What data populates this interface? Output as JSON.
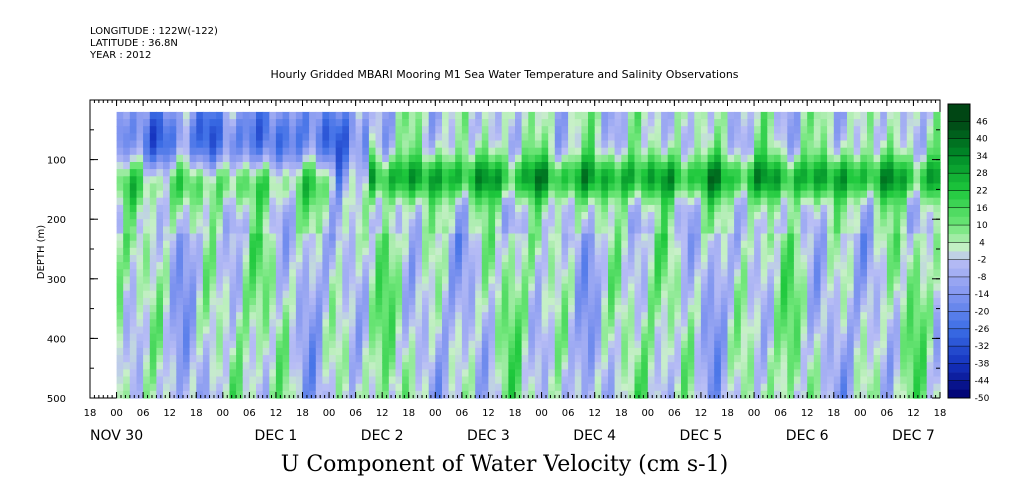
{
  "header": {
    "longitude": "LONGITUDE : 122W(-122)",
    "latitude": "LATITUDE : 36.8N",
    "year": "YEAR : 2012"
  },
  "chart_data": {
    "type": "heatmap",
    "title": "Hourly Gridded MBARI Mooring M1 Sea Water Temperature and Salinity Observations",
    "xlabel": "U Component of Water Velocity (cm s-1)",
    "ylabel": "DEPTH (m)",
    "x_hour_ticks": [
      "18",
      "00",
      "06",
      "12",
      "18",
      "00",
      "06",
      "12",
      "18",
      "00",
      "06",
      "12",
      "18",
      "00",
      "06",
      "12",
      "18",
      "00",
      "06",
      "12",
      "18",
      "00",
      "06",
      "12",
      "18",
      "00",
      "06",
      "12",
      "18",
      "00",
      "06",
      "12",
      "18"
    ],
    "x_day_labels": [
      "NOV 30",
      "DEC  1",
      "DEC  2",
      "DEC  3",
      "DEC  4",
      "DEC  5",
      "DEC  6",
      "DEC  7"
    ],
    "y_ticks": [
      100,
      200,
      300,
      400,
      500
    ],
    "ylim": [
      500,
      0
    ],
    "xlim_hours": [
      -6,
      186
    ],
    "colorbar_labels": [
      46,
      40,
      34,
      28,
      22,
      16,
      10,
      4,
      -2,
      -8,
      -14,
      -20,
      -26,
      -32,
      -38,
      -44,
      -50
    ],
    "colorbar_range": [
      -50,
      52
    ],
    "colorbar_step": 3,
    "features": [
      {
        "depth": 130,
        "width": 40,
        "amp": 18,
        "hour_from": 0,
        "hour_to": 48
      },
      {
        "depth": 125,
        "width": 35,
        "amp": 26,
        "hour_from": 56,
        "hour_to": 186
      },
      {
        "depth": 60,
        "width": 70,
        "amp": -22,
        "hour_from": 0,
        "hour_to": 56
      }
    ]
  }
}
